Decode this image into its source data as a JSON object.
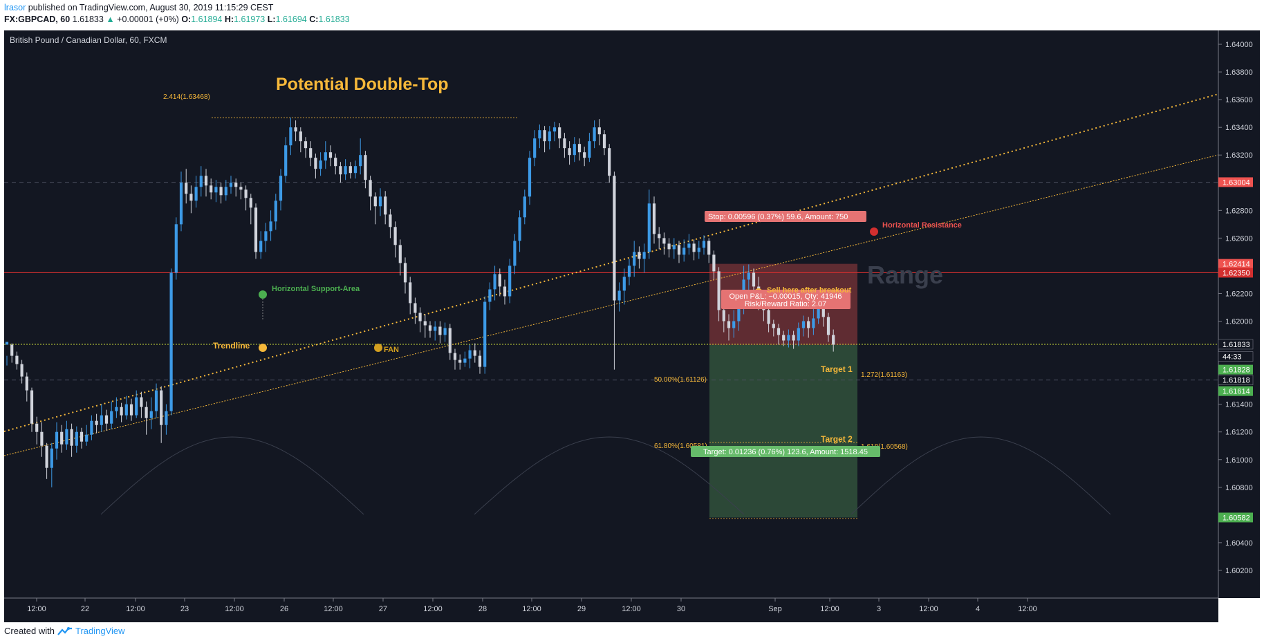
{
  "header": {
    "author": "lrasor",
    "published": "published on TradingView.com, August 30, 2019 11:15:29 CEST",
    "symbol": "FX:GBPCAD, 60",
    "last": "1.61833",
    "arrow": "▲",
    "change": "+0.00001 (+0%)",
    "open_label": "O:",
    "open": "1.61894",
    "high_label": "H:",
    "high": "1.61973",
    "low_label": "L:",
    "low": "1.61694",
    "close_label": "C:",
    "close": "1.61833"
  },
  "footer": {
    "created_with": "Created with",
    "brand": "TradingView",
    "logo_icon": "tradingview-logo-icon"
  },
  "colors": {
    "background": "#131722",
    "up": "#3d9ae6",
    "down": "#d1d4dc",
    "gold": "#f6b83a",
    "resistance": "#d32f2f",
    "support": "#4caf50",
    "grid": "#4b5060"
  },
  "chart_data": {
    "type": "candlestick",
    "legend": "British Pound / Canadian Dollar, 60, FXCM",
    "ylim": [
      1.6,
      1.641
    ],
    "y_ticks": [
      "1.64000",
      "1.63800",
      "1.63600",
      "1.63400",
      "1.63200",
      "1.62800",
      "1.62600",
      "1.62200",
      "1.62000",
      "1.61400",
      "1.61200",
      "1.61000",
      "1.60800",
      "1.60400",
      "1.60200"
    ],
    "x_ticks": [
      "12:00",
      "22",
      "12:00",
      "23",
      "12:00",
      "26",
      "12:00",
      "27",
      "12:00",
      "28",
      "12:00",
      "29",
      "12:00",
      "30",
      "Sep",
      "12:00",
      "3",
      "12:00",
      "4",
      "12:00"
    ],
    "price_badges": [
      {
        "label": "1.63004",
        "value": 1.63004,
        "color": "#ef5350"
      },
      {
        "label": "1.62414",
        "value": 1.62414,
        "color": "#ef5350"
      },
      {
        "label": "1.62350",
        "value": 1.6235,
        "color": "#d32f2f"
      },
      {
        "label": "1.61833",
        "value": 1.61833,
        "color": "#131722"
      },
      {
        "label": "44:33",
        "value": 1.61745,
        "color": "#131722"
      },
      {
        "label": "1.61828",
        "value": 1.6165,
        "color": "#4caf50"
      },
      {
        "label": "1.61818",
        "value": 1.61575,
        "color": "#131722"
      },
      {
        "label": "1.61614",
        "value": 1.61495,
        "color": "#4caf50"
      },
      {
        "label": "1.60582",
        "value": 1.60582,
        "color": "#4caf50"
      }
    ],
    "candles": [
      [
        1.6183,
        1.6185,
        1.6175,
        1.6168
      ],
      [
        1.6183,
        1.6175,
        1.6184,
        1.617
      ],
      [
        1.6175,
        1.6169,
        1.6178,
        1.6165
      ],
      [
        1.6169,
        1.616,
        1.6172,
        1.6155
      ],
      [
        1.616,
        1.615,
        1.6163,
        1.6142
      ],
      [
        1.615,
        1.6126,
        1.6152,
        1.612
      ],
      [
        1.6126,
        1.612,
        1.6131,
        1.6111
      ],
      [
        1.612,
        1.611,
        1.6127,
        1.6102
      ],
      [
        1.611,
        1.6094,
        1.6112,
        1.6086
      ],
      [
        1.6094,
        1.6108,
        1.6112,
        1.608
      ],
      [
        1.6108,
        1.612,
        1.6127,
        1.61
      ],
      [
        1.612,
        1.6111,
        1.6125,
        1.6105
      ],
      [
        1.6111,
        1.6122,
        1.6128,
        1.6107
      ],
      [
        1.6122,
        1.611,
        1.6126,
        1.6102
      ],
      [
        1.611,
        1.612,
        1.6124,
        1.6105
      ],
      [
        1.612,
        1.6113,
        1.6123,
        1.6108
      ],
      [
        1.6113,
        1.6118,
        1.6125,
        1.611
      ],
      [
        1.6118,
        1.6128,
        1.6132,
        1.6114
      ],
      [
        1.6128,
        1.6125,
        1.6133,
        1.6119
      ],
      [
        1.6125,
        1.6132,
        1.614,
        1.612
      ],
      [
        1.6132,
        1.6126,
        1.6136,
        1.6121
      ],
      [
        1.6126,
        1.6135,
        1.6142,
        1.6122
      ],
      [
        1.6135,
        1.6138,
        1.6145,
        1.613
      ],
      [
        1.6138,
        1.6132,
        1.6141,
        1.6127
      ],
      [
        1.6132,
        1.614,
        1.6146,
        1.6129
      ],
      [
        1.614,
        1.6132,
        1.6144,
        1.6128
      ],
      [
        1.6132,
        1.6145,
        1.615,
        1.613
      ],
      [
        1.6145,
        1.6138,
        1.6149,
        1.613
      ],
      [
        1.6138,
        1.613,
        1.6142,
        1.6118
      ],
      [
        1.613,
        1.6135,
        1.6145,
        1.6122
      ],
      [
        1.6135,
        1.615,
        1.6155,
        1.613
      ],
      [
        1.615,
        1.6125,
        1.6153,
        1.6112
      ],
      [
        1.6125,
        1.6135,
        1.614,
        1.6118
      ],
      [
        1.6135,
        1.6235,
        1.6238,
        1.6132
      ],
      [
        1.6235,
        1.627,
        1.6275,
        1.623
      ],
      [
        1.627,
        1.63,
        1.6308,
        1.6265
      ],
      [
        1.63,
        1.6292,
        1.631,
        1.6285
      ],
      [
        1.6292,
        1.6287,
        1.6298,
        1.6278
      ],
      [
        1.6287,
        1.6297,
        1.6305,
        1.6282
      ],
      [
        1.6297,
        1.6305,
        1.6312,
        1.629
      ],
      [
        1.6305,
        1.6298,
        1.631,
        1.629
      ],
      [
        1.6298,
        1.6293,
        1.6303,
        1.6288
      ],
      [
        1.6293,
        1.6297,
        1.6302,
        1.6286
      ],
      [
        1.6297,
        1.6291,
        1.63,
        1.6285
      ],
      [
        1.6291,
        1.6297,
        1.6302,
        1.6287
      ],
      [
        1.6297,
        1.63,
        1.6305,
        1.6292
      ],
      [
        1.63,
        1.6297,
        1.6303,
        1.629
      ],
      [
        1.6297,
        1.6295,
        1.63,
        1.6288
      ],
      [
        1.6295,
        1.6289,
        1.6298,
        1.628
      ],
      [
        1.6289,
        1.6282,
        1.6292,
        1.627
      ],
      [
        1.6282,
        1.625,
        1.6285,
        1.6245
      ],
      [
        1.625,
        1.6258,
        1.6265,
        1.6245
      ],
      [
        1.6258,
        1.6265,
        1.6271,
        1.625
      ],
      [
        1.6265,
        1.6272,
        1.628,
        1.6258
      ],
      [
        1.6272,
        1.6287,
        1.6292,
        1.6266
      ],
      [
        1.6287,
        1.6305,
        1.631,
        1.628
      ],
      [
        1.6305,
        1.6327,
        1.6333,
        1.63
      ],
      [
        1.6327,
        1.634,
        1.6347,
        1.632
      ],
      [
        1.634,
        1.6337,
        1.6345,
        1.633
      ],
      [
        1.6337,
        1.633,
        1.634,
        1.6322
      ],
      [
        1.633,
        1.6325,
        1.6333,
        1.6318
      ],
      [
        1.6325,
        1.6318,
        1.633,
        1.6312
      ],
      [
        1.6318,
        1.631,
        1.6321,
        1.6303
      ],
      [
        1.631,
        1.6316,
        1.6322,
        1.6305
      ],
      [
        1.6316,
        1.6322,
        1.633,
        1.631
      ],
      [
        1.6322,
        1.6318,
        1.6327,
        1.6312
      ],
      [
        1.6318,
        1.6312,
        1.6321,
        1.6306
      ],
      [
        1.6312,
        1.6306,
        1.6315,
        1.63
      ],
      [
        1.6306,
        1.6312,
        1.6317,
        1.6302
      ],
      [
        1.6312,
        1.6307,
        1.6315,
        1.6303
      ],
      [
        1.6307,
        1.6312,
        1.6316,
        1.6303
      ],
      [
        1.6312,
        1.632,
        1.6332,
        1.6306
      ],
      [
        1.632,
        1.6302,
        1.6323,
        1.6296
      ],
      [
        1.6302,
        1.629,
        1.6305,
        1.628
      ],
      [
        1.629,
        1.6283,
        1.6293,
        1.627
      ],
      [
        1.6283,
        1.629,
        1.6296,
        1.6276
      ],
      [
        1.629,
        1.6277,
        1.6294,
        1.627
      ],
      [
        1.6277,
        1.6268,
        1.6281,
        1.626
      ],
      [
        1.6268,
        1.6255,
        1.6272,
        1.6246
      ],
      [
        1.6255,
        1.6242,
        1.6259,
        1.6233
      ],
      [
        1.6242,
        1.6228,
        1.6246,
        1.622
      ],
      [
        1.6228,
        1.6213,
        1.6232,
        1.6205
      ],
      [
        1.6213,
        1.6206,
        1.6217,
        1.6198
      ],
      [
        1.6206,
        1.62,
        1.621,
        1.6192
      ],
      [
        1.62,
        1.6197,
        1.6205,
        1.6188
      ],
      [
        1.6197,
        1.6193,
        1.62,
        1.6188
      ],
      [
        1.6193,
        1.6196,
        1.62,
        1.6186
      ],
      [
        1.6196,
        1.619,
        1.62,
        1.6184
      ],
      [
        1.619,
        1.6195,
        1.6199,
        1.6185
      ],
      [
        1.6195,
        1.6177,
        1.6198,
        1.6172
      ],
      [
        1.6177,
        1.6172,
        1.618,
        1.6165
      ],
      [
        1.6172,
        1.617,
        1.6176,
        1.6165
      ],
      [
        1.617,
        1.6173,
        1.6178,
        1.6167
      ],
      [
        1.6173,
        1.6179,
        1.6183,
        1.6166
      ],
      [
        1.6179,
        1.6175,
        1.6184,
        1.617
      ],
      [
        1.6175,
        1.6167,
        1.6179,
        1.6162
      ],
      [
        1.6167,
        1.6214,
        1.6218,
        1.6162
      ],
      [
        1.6214,
        1.6223,
        1.6228,
        1.6208
      ],
      [
        1.6223,
        1.6234,
        1.624,
        1.6215
      ],
      [
        1.6234,
        1.6225,
        1.6238,
        1.6218
      ],
      [
        1.6225,
        1.6218,
        1.623,
        1.6212
      ],
      [
        1.6218,
        1.624,
        1.6245,
        1.6213
      ],
      [
        1.624,
        1.6258,
        1.6263,
        1.6234
      ],
      [
        1.6258,
        1.6275,
        1.628,
        1.625
      ],
      [
        1.6275,
        1.629,
        1.6295,
        1.627
      ],
      [
        1.629,
        1.6318,
        1.6323,
        1.6284
      ],
      [
        1.6318,
        1.6332,
        1.6338,
        1.6312
      ],
      [
        1.6332,
        1.6338,
        1.6342,
        1.6325
      ],
      [
        1.6338,
        1.633,
        1.6341,
        1.6322
      ],
      [
        1.633,
        1.6337,
        1.6341,
        1.6324
      ],
      [
        1.6337,
        1.634,
        1.6344,
        1.633
      ],
      [
        1.634,
        1.6332,
        1.6343,
        1.6325
      ],
      [
        1.6332,
        1.6325,
        1.6336,
        1.6318
      ],
      [
        1.6325,
        1.632,
        1.633,
        1.6313
      ],
      [
        1.632,
        1.6328,
        1.6333,
        1.6315
      ],
      [
        1.6328,
        1.6322,
        1.6332,
        1.6316
      ],
      [
        1.6322,
        1.6318,
        1.6326,
        1.6312
      ],
      [
        1.6318,
        1.633,
        1.6336,
        1.6315
      ],
      [
        1.633,
        1.634,
        1.6345,
        1.6325
      ],
      [
        1.634,
        1.6335,
        1.6346,
        1.6327
      ],
      [
        1.6335,
        1.6325,
        1.6338,
        1.632
      ],
      [
        1.6325,
        1.6305,
        1.6328,
        1.63
      ],
      [
        1.6305,
        1.6215,
        1.6308,
        1.6165
      ],
      [
        1.6215,
        1.6222,
        1.6228,
        1.6207
      ],
      [
        1.6222,
        1.6232,
        1.6238,
        1.6212
      ],
      [
        1.6232,
        1.624,
        1.6245,
        1.6226
      ],
      [
        1.624,
        1.625,
        1.6258,
        1.6232
      ],
      [
        1.625,
        1.6245,
        1.6254,
        1.6238
      ],
      [
        1.6245,
        1.625,
        1.6256,
        1.6235
      ],
      [
        1.625,
        1.6285,
        1.6295,
        1.6245
      ],
      [
        1.6285,
        1.6263,
        1.629,
        1.6256
      ],
      [
        1.6263,
        1.626,
        1.6268,
        1.6252
      ],
      [
        1.626,
        1.6256,
        1.6264,
        1.6248
      ],
      [
        1.6256,
        1.6252,
        1.626,
        1.6246
      ],
      [
        1.6252,
        1.6255,
        1.626,
        1.6245
      ],
      [
        1.6255,
        1.6248,
        1.6258,
        1.6242
      ],
      [
        1.6248,
        1.6253,
        1.6259,
        1.6243
      ],
      [
        1.6253,
        1.6256,
        1.6263,
        1.6248
      ],
      [
        1.6256,
        1.625,
        1.6259,
        1.6244
      ],
      [
        1.625,
        1.6253,
        1.6258,
        1.6245
      ],
      [
        1.6253,
        1.6258,
        1.6262,
        1.6248
      ],
      [
        1.6258,
        1.6248,
        1.626,
        1.6242
      ],
      [
        1.6248,
        1.6236,
        1.6251,
        1.623
      ],
      [
        1.6236,
        1.6208,
        1.6239,
        1.62
      ],
      [
        1.6208,
        1.62,
        1.6212,
        1.6192
      ],
      [
        1.62,
        1.6195,
        1.6205,
        1.6186
      ],
      [
        1.6195,
        1.62,
        1.6208,
        1.6188
      ],
      [
        1.62,
        1.621,
        1.6215,
        1.6193
      ],
      [
        1.621,
        1.623,
        1.624,
        1.6205
      ],
      [
        1.623,
        1.6235,
        1.6241,
        1.6222
      ],
      [
        1.6235,
        1.6225,
        1.6238,
        1.6215
      ],
      [
        1.6225,
        1.6215,
        1.6232,
        1.6208
      ],
      [
        1.6215,
        1.6208,
        1.622,
        1.62
      ],
      [
        1.6208,
        1.6198,
        1.6212,
        1.6192
      ],
      [
        1.6198,
        1.6195,
        1.6201,
        1.6189
      ],
      [
        1.6195,
        1.619,
        1.6198,
        1.6183
      ],
      [
        1.619,
        1.6186,
        1.6193,
        1.6182
      ],
      [
        1.6186,
        1.619,
        1.6194,
        1.6181
      ],
      [
        1.619,
        1.6186,
        1.6193,
        1.618
      ],
      [
        1.6186,
        1.6195,
        1.6199,
        1.6182
      ],
      [
        1.6195,
        1.62,
        1.6204,
        1.6189
      ],
      [
        1.62,
        1.6195,
        1.6203,
        1.6188
      ],
      [
        1.6195,
        1.6202,
        1.6209,
        1.619
      ],
      [
        1.6202,
        1.6212,
        1.6218,
        1.6198
      ],
      [
        1.6212,
        1.6203,
        1.6215,
        1.6196
      ],
      [
        1.6203,
        1.619,
        1.6206,
        1.6185
      ],
      [
        1.619,
        1.6183,
        1.6194,
        1.6178
      ]
    ],
    "annotations": {
      "title": "Potential Double-Top",
      "range_label": "Range",
      "resistance_label": "Horizontal Resistance",
      "support_label": "Horizontal Support-Area",
      "trendline_label": "Trendline",
      "fan_label": "FAN",
      "sell_label": "Sell here after breakout",
      "target1_label": "Target 1",
      "target2_label": "Target 2",
      "fib_top": "2.414(1.63468)",
      "fib_50": "50.00%(1.61126)",
      "fib_618": "61.80%(1.60581)",
      "fib_1272": "1.272(1.61163)",
      "fib_1618": "1.618(1.60568)",
      "stop_box": "Stop: 0.00596 (0.37%) 59.6, Amount: 750",
      "pnl_box": "Open P&L: −0.00015, Qty: 41946",
      "rr_box": "Risk/Reward Ratio: 2.07",
      "target_box": "Target: 0.01236 (0.76%) 123.6, Amount: 1518.45"
    }
  }
}
